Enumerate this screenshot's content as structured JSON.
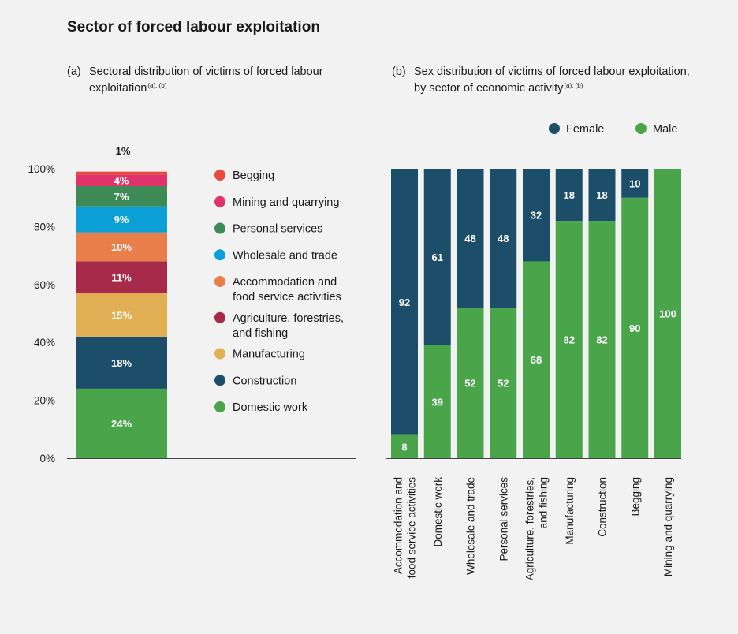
{
  "title": "Sector of forced labour exploitation",
  "panel_a": {
    "label": "(a)",
    "text": "Sectoral distribution of victims of forced labour exploitation",
    "sup": "(a), (b)"
  },
  "panel_b": {
    "label": "(b)",
    "text": "Sex distribution of victims of forced labour exploitation, by sector of economic activity",
    "sup": "(a), (b)"
  },
  "colors": {
    "female": "#1d4e69",
    "male": "#4aa54a",
    "begging": "#e84a3b",
    "mining": "#e0336b",
    "personal": "#3c8a55",
    "wholesale": "#0aa0d6",
    "accommodation": "#e87e4a",
    "agriculture": "#a82a4a",
    "manufacturing": "#e1b055",
    "construction": "#1d4e69",
    "domestic": "#4aa54a"
  },
  "chart_data": [
    {
      "type": "bar",
      "subtype": "stacked-100",
      "title": "Sectoral distribution of victims of forced labour exploitation",
      "ylim": [
        0,
        100
      ],
      "yticks": [
        0,
        20,
        40,
        60,
        80,
        100
      ],
      "ytick_labels": [
        "0%",
        "20%",
        "40%",
        "60%",
        "80%",
        "100%"
      ],
      "segments": [
        {
          "name": "Domestic work",
          "value": 24,
          "label": "24%",
          "color": "#4aa54a"
        },
        {
          "name": "Construction",
          "value": 18,
          "label": "18%",
          "color": "#1d4e69"
        },
        {
          "name": "Manufacturing",
          "value": 15,
          "label": "15%",
          "color": "#e1b055"
        },
        {
          "name": "Agriculture, forestries, and fishing",
          "value": 11,
          "label": "11%",
          "color": "#a82a4a"
        },
        {
          "name": "Accommodation and food service activities",
          "value": 10,
          "label": "10%",
          "color": "#e87e4a"
        },
        {
          "name": "Wholesale and trade",
          "value": 9,
          "label": "9%",
          "color": "#0aa0d6"
        },
        {
          "name": "Personal services",
          "value": 7,
          "label": "7%",
          "color": "#3c8a55"
        },
        {
          "name": "Mining and quarrying",
          "value": 4,
          "label": "4%",
          "color": "#e0336b"
        },
        {
          "name": "Begging",
          "value": 1,
          "label": "1%",
          "color": "#e84a3b"
        }
      ],
      "legend": [
        {
          "lines": [
            "Begging"
          ],
          "color": "#e84a3b"
        },
        {
          "lines": [
            "Mining and quarrying"
          ],
          "color": "#e0336b"
        },
        {
          "lines": [
            "Personal services"
          ],
          "color": "#3c8a55"
        },
        {
          "lines": [
            "Wholesale and trade"
          ],
          "color": "#0aa0d6"
        },
        {
          "lines": [
            "Accommodation and",
            "food service activities"
          ],
          "color": "#e87e4a"
        },
        {
          "lines": [
            "Agriculture, forestries,",
            "and fishing"
          ],
          "color": "#a82a4a"
        },
        {
          "lines": [
            "Manufacturing"
          ],
          "color": "#e1b055"
        },
        {
          "lines": [
            "Construction"
          ],
          "color": "#1d4e69"
        },
        {
          "lines": [
            "Domestic work"
          ],
          "color": "#4aa54a"
        }
      ]
    },
    {
      "type": "bar",
      "subtype": "stacked-100",
      "title": "Sex distribution of victims of forced labour exploitation, by sector of economic activity",
      "ylim": [
        0,
        100
      ],
      "categories": [
        [
          "Accommodation and",
          "food service activities"
        ],
        [
          "Domestic work"
        ],
        [
          "Wholesale and trade"
        ],
        [
          "Personal services"
        ],
        [
          "Agriculture, forestries,",
          "and fishing"
        ],
        [
          "Manufacturing"
        ],
        [
          "Construction"
        ],
        [
          "Begging"
        ],
        [
          "Mining and quarrying"
        ]
      ],
      "series": [
        {
          "name": "Male",
          "color": "#4aa54a",
          "values": [
            8,
            39,
            52,
            52,
            68,
            82,
            82,
            90,
            100
          ]
        },
        {
          "name": "Female",
          "color": "#1d4e69",
          "values": [
            92,
            61,
            48,
            48,
            32,
            18,
            18,
            10,
            0
          ]
        }
      ],
      "legend": [
        {
          "name": "Female",
          "color": "#1d4e69"
        },
        {
          "name": "Male",
          "color": "#4aa54a"
        }
      ]
    }
  ]
}
